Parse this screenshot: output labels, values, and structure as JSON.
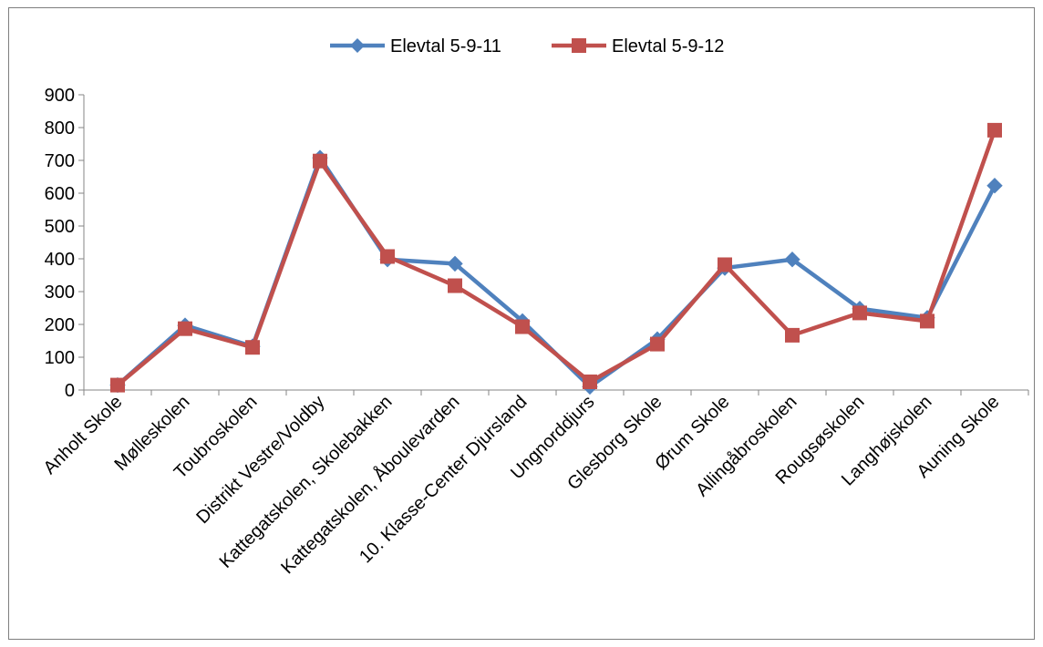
{
  "chart_data": {
    "type": "line",
    "title": "",
    "xlabel": "",
    "ylabel": "",
    "categories": [
      "Anholt Skole",
      "Mølleskolen",
      "Toubroskolen",
      "Distrikt Vestre/Voldby",
      "Kattegatskolen, Skolebakken",
      "Kattegatskolen, Åboulevarden",
      "10. Klasse-Center Djursland",
      "Ungnorddjurs",
      "Glesborg Skole",
      "Ørum Skole",
      "Allingåbroskolen",
      "Rougsøskolen",
      "Langhøjskolen",
      "Auning Skole"
    ],
    "series": [
      {
        "name": "Elevtal 5-9-11",
        "color": "#4f81bd",
        "marker": "diamond",
        "values": [
          15,
          197,
          133,
          708,
          398,
          385,
          210,
          10,
          155,
          372,
          398,
          248,
          220,
          623
        ]
      },
      {
        "name": "Elevtal 5-9-12",
        "color": "#c0504d",
        "marker": "square",
        "values": [
          15,
          187,
          130,
          698,
          407,
          318,
          193,
          25,
          140,
          382,
          167,
          235,
          210,
          792
        ]
      }
    ],
    "ylim": [
      0,
      900
    ],
    "yticks": [
      "0",
      "100",
      "200",
      "300",
      "400",
      "500",
      "600",
      "700",
      "800",
      "900"
    ],
    "grid": false,
    "legend_position": "top-center"
  }
}
